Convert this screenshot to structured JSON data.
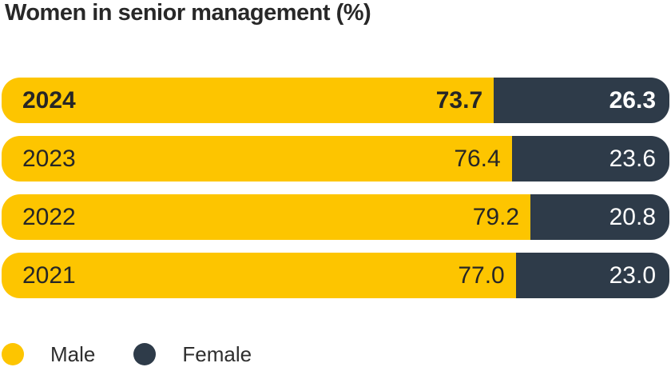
{
  "title": "Women in senior management (%)",
  "colors": {
    "male": "#FDC500",
    "female": "#2E3B49",
    "text_dark": "#262626",
    "text_light": "#FFFFFF"
  },
  "rows": [
    {
      "year": "2024",
      "male": "73.7",
      "female": "26.3"
    },
    {
      "year": "2023",
      "male": "76.4",
      "female": "23.6"
    },
    {
      "year": "2022",
      "male": "79.2",
      "female": "20.8"
    },
    {
      "year": "2021",
      "male": "77.0",
      "female": "23.0"
    }
  ],
  "legend": {
    "male_label": "Male",
    "female_label": "Female"
  },
  "chart_data": {
    "type": "bar",
    "orientation": "horizontal",
    "stacked": true,
    "title": "Women in senior management (%)",
    "categories": [
      "2024",
      "2023",
      "2022",
      "2021"
    ],
    "series": [
      {
        "name": "Male",
        "color": "#FDC500",
        "values": [
          73.7,
          76.4,
          79.2,
          77.0
        ]
      },
      {
        "name": "Female",
        "color": "#2E3B49",
        "values": [
          26.3,
          23.6,
          20.8,
          23.0
        ]
      }
    ],
    "xlim": [
      0,
      100
    ],
    "value_labels": "inside-end",
    "grid": false,
    "axes_visible": false,
    "highlight_category": "2024",
    "legend_position": "bottom-left"
  }
}
